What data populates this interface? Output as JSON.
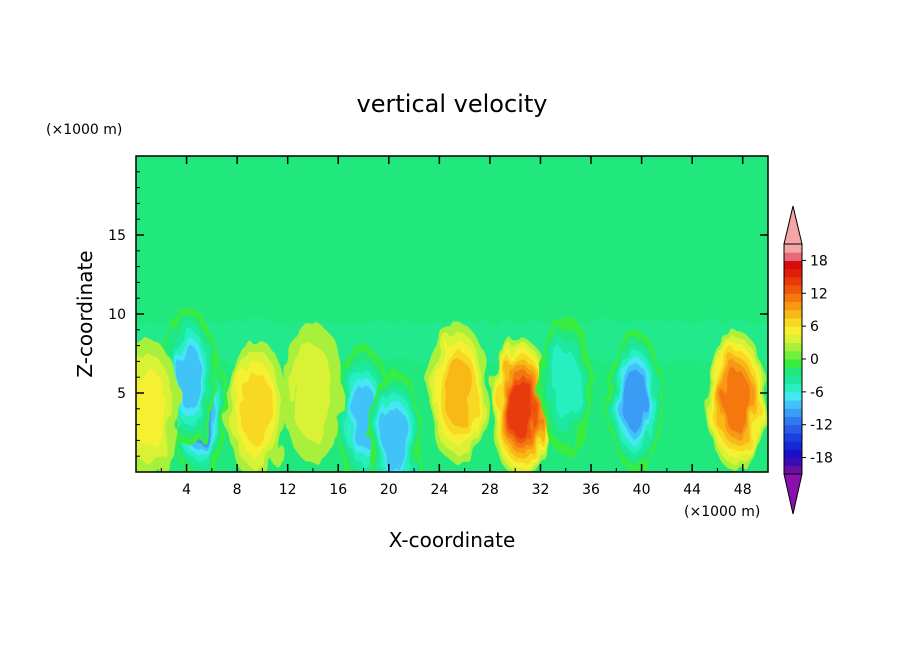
{
  "chart_data": {
    "type": "heatmap",
    "title": "vertical velocity",
    "xlabel": "X-coordinate",
    "ylabel": "Z-coordinate",
    "x_unit": "(×1000 m)",
    "y_unit": "(×1000 m)",
    "xlim": [
      0,
      50
    ],
    "ylim": [
      0,
      20
    ],
    "x_ticks": [
      4,
      8,
      12,
      16,
      20,
      24,
      28,
      32,
      36,
      40,
      44,
      48
    ],
    "y_ticks": [
      5,
      10,
      15
    ],
    "colorbar": {
      "levels": [
        -21,
        -19.5,
        -18,
        -16.5,
        -15,
        -13.5,
        -12,
        -10.5,
        -9,
        -7.5,
        -6,
        -4.5,
        -3,
        -1.5,
        0,
        1.5,
        3,
        4.5,
        6,
        7.5,
        9,
        10.5,
        12,
        13.5,
        15,
        16.5,
        18,
        19.5,
        21
      ],
      "tick_labels": [
        "18",
        "12",
        "6",
        "0",
        "-6",
        "-12",
        "-18"
      ],
      "tick_values": [
        18,
        12,
        6,
        0,
        -6,
        -12,
        -18
      ],
      "colors": [
        "#6a0fa0",
        "#3a0cb4",
        "#1a10c8",
        "#1428d6",
        "#1a40e0",
        "#2a5ae8",
        "#2e7af0",
        "#3a9cf6",
        "#40c4f8",
        "#46e6f4",
        "#28f0c0",
        "#1ee8a0",
        "#20e87c",
        "#38ec40",
        "#6ef03c",
        "#a8f03a",
        "#d8f236",
        "#f6f030",
        "#f8d820",
        "#f8b818",
        "#f89812",
        "#f4780e",
        "#f0560a",
        "#e83a08",
        "#e02006",
        "#d80c0c",
        "#e86a78",
        "#f4a6a6"
      ],
      "under_color": "#8a10b0",
      "over_color": "#f4a6a6"
    },
    "features": [
      {
        "x": 5.0,
        "z": 4.0,
        "value": -12
      },
      {
        "x": 4.2,
        "z": 6.0,
        "value": -9
      },
      {
        "x": 9.5,
        "z": 4.0,
        "value": 6
      },
      {
        "x": 18.0,
        "z": 3.5,
        "value": -9
      },
      {
        "x": 20.5,
        "z": 2.0,
        "value": -9
      },
      {
        "x": 25.5,
        "z": 5.0,
        "value": 7
      },
      {
        "x": 30.5,
        "z": 4.0,
        "value": 13
      },
      {
        "x": 34.0,
        "z": 5.5,
        "value": -6
      },
      {
        "x": 39.5,
        "z": 4.5,
        "value": -10
      },
      {
        "x": 47.5,
        "z": 4.5,
        "value": 11
      },
      {
        "x": 1.0,
        "z": 4.0,
        "value": 4
      },
      {
        "x": 14.0,
        "z": 5.0,
        "value": 2
      }
    ]
  }
}
